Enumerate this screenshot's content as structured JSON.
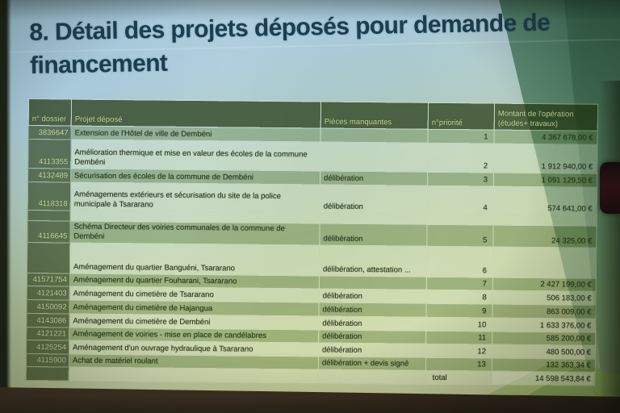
{
  "title": {
    "line1": "8. Détail des projets déposés pour demande de",
    "line2": "financement"
  },
  "table": {
    "headers": {
      "dossier": "n° dossier",
      "projet": "Projet déposé",
      "pieces": "Pièces manquantes",
      "priorite": "n°priorité",
      "montant": "Montant de l'opération\n(études+ travaux)"
    },
    "rows": [
      {
        "dossier": "3836647",
        "projet": "Extension de l'Hôtel de ville de Dembéni",
        "pieces": "",
        "priorite": "1",
        "montant": "4 367 678,00 €"
      },
      {
        "dossier": "4113355",
        "projet": "Amélioration thermique et mise en valeur des écoles de la commune Dembéni",
        "pieces": "",
        "priorite": "2",
        "montant": "1 912 940,00 €"
      },
      {
        "dossier": "4132489",
        "projet": "Sécurisation des écoles de la commune de Dembéni",
        "pieces": "délibération",
        "priorite": "3",
        "montant": "1 091 129,50 €"
      },
      {
        "dossier": "4118318",
        "projet": "Aménagements extérieurs et sécurisation du site de la police municipale à Tsararano",
        "pieces": "délibération",
        "priorite": "4",
        "montant": "574 641,00 €"
      },
      {
        "dossier": "4116645",
        "projet": "Schéma Directeur des voiries communales de la commune de Dembéni",
        "pieces": "délibération",
        "priorite": "5",
        "montant": "24 325,00 €"
      },
      {
        "dossier": "",
        "projet": "Aménagement du quartier Banguéni, Tsararano",
        "pieces": "délibération, attestation ...",
        "priorite": "6",
        "montant": ""
      },
      {
        "dossier": "41571754",
        "projet": "Aménagement du quartier Fouharani, Tsararano",
        "pieces": "",
        "priorite": "7",
        "montant": "2 427 199,00 €"
      },
      {
        "dossier": "4121403",
        "projet": "Aménagement du cimetière de Tsararano",
        "pieces": "délibération",
        "priorite": "8",
        "montant": "506 183,00 €"
      },
      {
        "dossier": "4150092",
        "projet": "Aménagement du cimetière de Hajangua",
        "pieces": "délibération",
        "priorite": "9",
        "montant": "863 009,00 €"
      },
      {
        "dossier": "4143086",
        "projet": "Aménagement du cimetière de Dembéni",
        "pieces": "délibération",
        "priorite": "10",
        "montant": "1 633 376,00 €"
      },
      {
        "dossier": "4121221",
        "projet": "Aménagement de voiries - mise en place de candélabres",
        "pieces": "délibération",
        "priorite": "11",
        "montant": "585 200,00 €"
      },
      {
        "dossier": "4125254",
        "projet": "Aménagement d'un ouvrage hydraulique à Tsararano",
        "pieces": "délibération",
        "priorite": "12",
        "montant": "480 500,00 €"
      },
      {
        "dossier": "4115900",
        "projet": "Achat de matériel roulant",
        "pieces": "délibération + devis signé",
        "priorite": "13",
        "montant": "132 363,34 €"
      }
    ],
    "total": {
      "label": "total",
      "montant": "14 598 543,84 €"
    }
  },
  "colors": {
    "title_text": "#1b3f50",
    "header_bg": "#42562c",
    "dossier_col_bg": "#4c6134",
    "band_dark": "#9bb277",
    "band_light": "#c1cf9b",
    "swoosh_green": "#3c6f52",
    "bottom_band_brown": "#3a2d20"
  }
}
